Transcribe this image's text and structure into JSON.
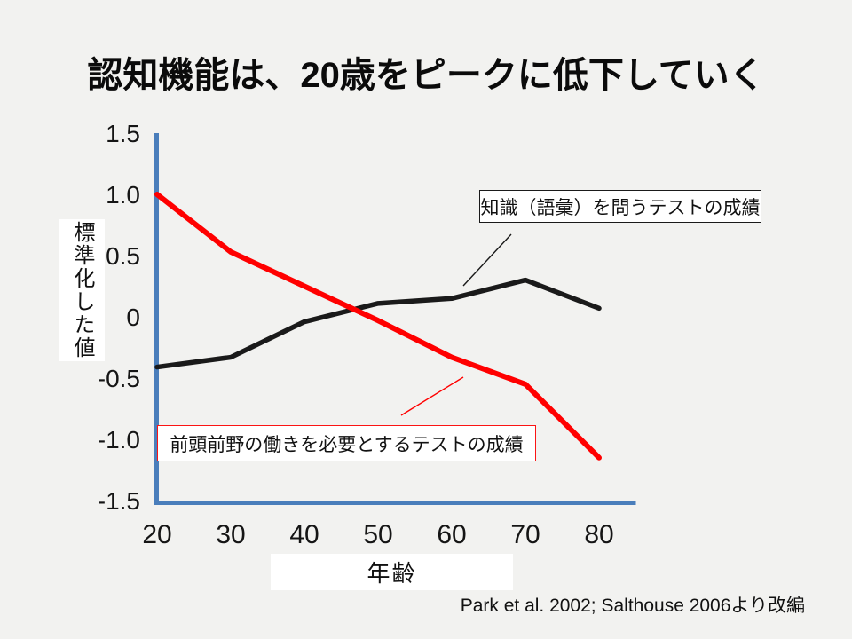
{
  "title": "認知機能は、20歳をピークに低下していく",
  "citation": "Park et al. 2002; Salthouse 2006より改編",
  "colors": {
    "background": "#f2f2f0",
    "axis_blue": "#4a7ebb",
    "knowledge_line_black": "#1a1a1a",
    "prefrontal_line_red": "#ff0000",
    "label_box_background": "#ffffff"
  },
  "chart_data": {
    "type": "line",
    "title": "",
    "xlabel": "年齢",
    "ylabel": "標準化した値",
    "x": [
      20,
      30,
      40,
      50,
      60,
      70,
      80
    ],
    "x_tick_labels": [
      "20",
      "30",
      "40",
      "50",
      "60",
      "70",
      "80"
    ],
    "y_ticks": [
      1.5,
      1.0,
      0.5,
      0,
      -0.5,
      -1.0,
      -1.5
    ],
    "y_tick_labels": [
      "1.5",
      "1.0",
      "0.5",
      "0",
      "-0.5",
      "-1.0",
      "-1.5"
    ],
    "xlim": [
      20,
      80
    ],
    "ylim": [
      -1.5,
      1.5
    ],
    "grid": false,
    "legend_position": "annotated text boxes with leader lines",
    "series": [
      {
        "name": "知識（語彙）を問うテストの成績",
        "color": "#1a1a1a",
        "values": [
          -0.41,
          -0.33,
          -0.04,
          0.11,
          0.15,
          0.3,
          0.07
        ]
      },
      {
        "name": "前頭前野の働きを必要とするテストの成績",
        "color": "#ff0000",
        "values": [
          1.0,
          0.53,
          0.25,
          -0.03,
          -0.33,
          -0.55,
          -1.15
        ]
      }
    ]
  },
  "annotations": {
    "knowledge_label": "知識（語彙）を問うテストの成績",
    "prefrontal_label": "前頭前野の働きを必要とするテストの成績"
  }
}
